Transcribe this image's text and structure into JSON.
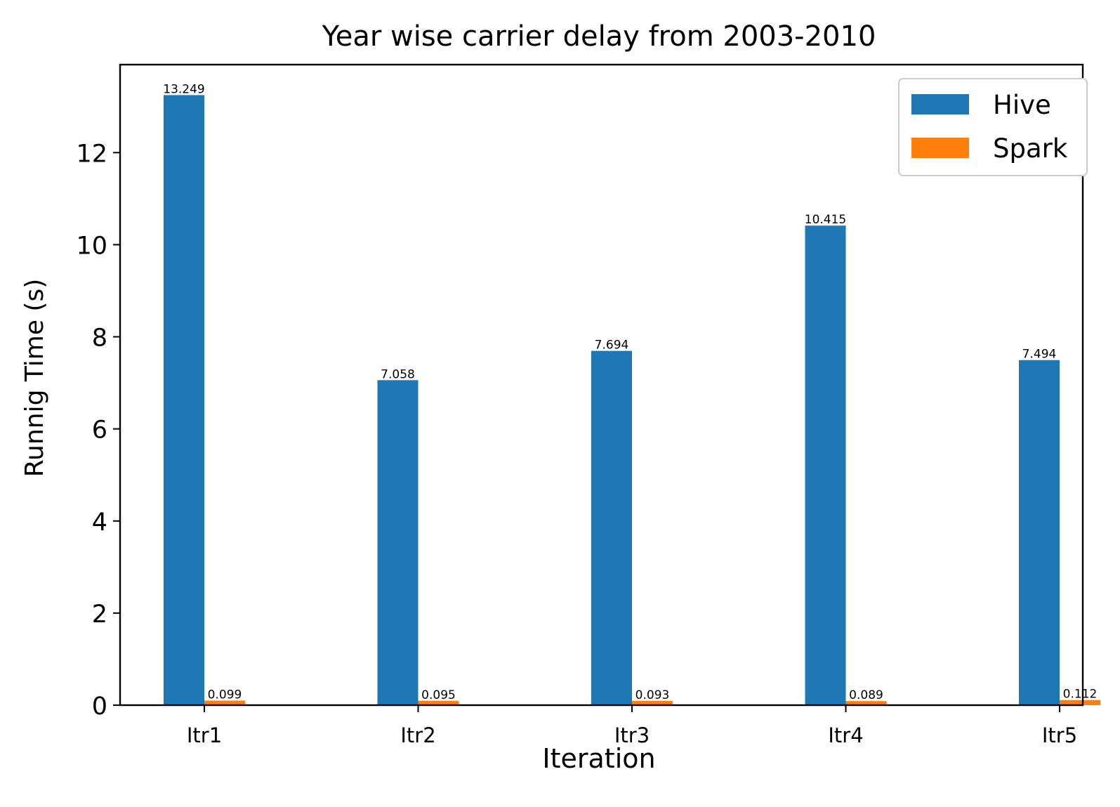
{
  "chart_data": {
    "type": "bar",
    "title": "Year wise carrier delay from 2003-2010",
    "xlabel": "Iteration",
    "ylabel": "Runnig Time (s)",
    "categories": [
      "Itr1",
      "Itr2",
      "Itr3",
      "Itr4",
      "Itr5"
    ],
    "series": [
      {
        "name": "Hive",
        "color": "#1f77b4",
        "values": [
          13.249,
          7.058,
          7.694,
          10.415,
          7.494
        ],
        "labels": [
          "13.249",
          "7.058",
          "7.694",
          "10.415",
          "7.494"
        ]
      },
      {
        "name": "Spark",
        "color": "#ff7f0e",
        "values": [
          0.099,
          0.095,
          0.093,
          0.089,
          0.112
        ],
        "labels": [
          "0.099",
          "0.095",
          "0.093",
          "0.089",
          "0.112"
        ]
      }
    ],
    "ylim": [
      0,
      13.911
    ],
    "yticks": [
      0,
      2,
      4,
      6,
      8,
      10,
      12
    ],
    "grid": false,
    "legend_position": "top-right"
  }
}
